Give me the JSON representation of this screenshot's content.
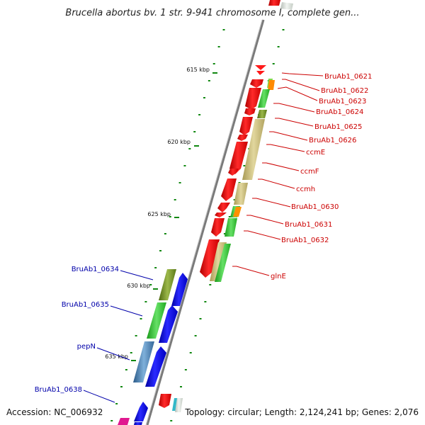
{
  "title": "Brucella abortus bv. 1 str. 9-941 chromosome I, complete gen...",
  "footer": {
    "accession": "Accession: NC_006932",
    "topology": "Topology: circular; Length: 2,124,241 bp; Genes: 2,076"
  },
  "ticks": [
    {
      "label": "615 kbp"
    },
    {
      "label": "620 kbp"
    },
    {
      "label": "625 kbp"
    },
    {
      "label": "630 kbp"
    },
    {
      "label": "635 kbp"
    }
  ],
  "genes_right": [
    {
      "label": "BruAb1_0621"
    },
    {
      "label": "BruAb1_0622"
    },
    {
      "label": "BruAb1_0623"
    },
    {
      "label": "BruAb1_0624"
    },
    {
      "label": "BruAb1_0625"
    },
    {
      "label": "BruAb1_0626"
    },
    {
      "label": "ccmE"
    },
    {
      "label": "ccmF"
    },
    {
      "label": "ccmh"
    },
    {
      "label": "BruAb1_0630"
    },
    {
      "label": "BruAb1_0631"
    },
    {
      "label": "BruAb1_0632"
    },
    {
      "label": "glnE"
    }
  ],
  "genes_left": [
    {
      "label": "BruAb1_0634"
    },
    {
      "label": "BruAb1_0635"
    },
    {
      "label": "pepN"
    },
    {
      "label": "BruAb1_0638"
    }
  ],
  "colors": {
    "forward_label": "#cc0000",
    "reverse_label": "#0000aa",
    "forward_gene": "#ff0000",
    "reverse_gene": "#0000ff",
    "tick": "#118811",
    "backbone": "#8a8a8a"
  }
}
